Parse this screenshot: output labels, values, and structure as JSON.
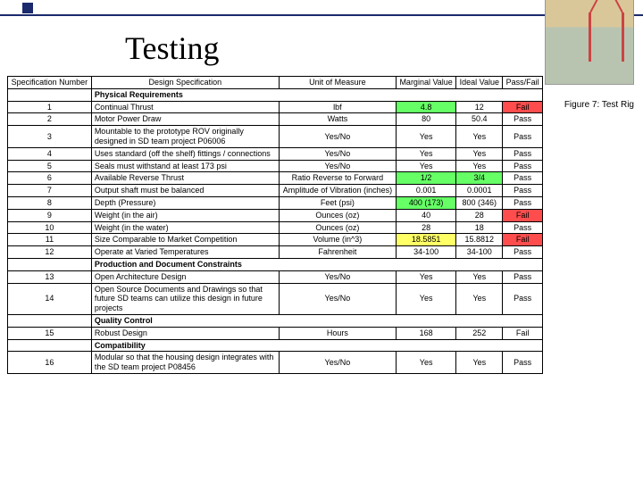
{
  "title": "Testing",
  "caption": "Figure 7: Test Rig",
  "headers": {
    "num": "Specification Number",
    "spec": "Design Specification",
    "unit": "Unit of Measure",
    "marg": "Marginal Value",
    "ideal": "Ideal Value",
    "pf": "Pass/Fail"
  },
  "sections": {
    "phys": "Physical Requirements",
    "prod": "Production and Document Constraints",
    "qual": "Quality Control",
    "compat": "Compatibility"
  },
  "rows": {
    "r1": {
      "n": "1",
      "spec": "Continual Thrust",
      "unit": "lbf",
      "marg": "4.8",
      "ideal": "12",
      "pf": "Fail",
      "marg_hl": "hl-green",
      "pf_hl": "hl-red"
    },
    "r2": {
      "n": "2",
      "spec": "Motor Power Draw",
      "unit": "Watts",
      "marg": "80",
      "ideal": "50.4",
      "pf": "Pass"
    },
    "r3": {
      "n": "3",
      "spec": "Mountable to the prototype ROV originally designed in SD team project P06006",
      "unit": "Yes/No",
      "marg": "Yes",
      "ideal": "Yes",
      "pf": "Pass"
    },
    "r4": {
      "n": "4",
      "spec": "Uses standard (off the shelf) fittings / connections",
      "unit": "Yes/No",
      "marg": "Yes",
      "ideal": "Yes",
      "pf": "Pass"
    },
    "r5": {
      "n": "5",
      "spec": "Seals must withstand at least 173 psi",
      "unit": "Yes/No",
      "marg": "Yes",
      "ideal": "Yes",
      "pf": "Pass"
    },
    "r6": {
      "n": "6",
      "spec": "Available Reverse Thrust",
      "unit": "Ratio Reverse to Forward",
      "marg": "1/2",
      "ideal": "3/4",
      "pf": "Pass",
      "marg_hl": "hl-green",
      "ideal_hl": "hl-green"
    },
    "r7": {
      "n": "7",
      "spec": "Output shaft must be balanced",
      "unit": "Amplitude of Vibration (inches)",
      "marg": "0.001",
      "ideal": "0.0001",
      "pf": "Pass"
    },
    "r8": {
      "n": "8",
      "spec": "Depth (Pressure)",
      "unit": "Feet (psi)",
      "marg": "400 (173)",
      "ideal": "800 (346)",
      "pf": "Pass",
      "marg_hl": "hl-green"
    },
    "r9": {
      "n": "9",
      "spec": "Weight (in the air)",
      "unit": "Ounces (oz)",
      "marg": "40",
      "ideal": "28",
      "pf": "Fail",
      "pf_hl": "hl-red"
    },
    "r10": {
      "n": "10",
      "spec": "Weight (in the water)",
      "unit": "Ounces (oz)",
      "marg": "28",
      "ideal": "18",
      "pf": "Pass"
    },
    "r11": {
      "n": "11",
      "spec": "Size Comparable to Market Competition",
      "unit": "Volume (in^3)",
      "marg": "18.5851",
      "ideal": "15.8812",
      "pf": "Fail",
      "marg_hl": "hl-yellow",
      "pf_hl": "hl-red"
    },
    "r12": {
      "n": "12",
      "spec": "Operate at Varied Temperatures",
      "unit": "Fahrenheit",
      "marg": "34-100",
      "ideal": "34-100",
      "pf": "Pass"
    },
    "r13": {
      "n": "13",
      "spec": "Open Architecture Design",
      "unit": "Yes/No",
      "marg": "Yes",
      "ideal": "Yes",
      "pf": "Pass"
    },
    "r14": {
      "n": "14",
      "spec": "Open Source Documents and Drawings so that future SD teams can utilize this design in future projects",
      "unit": "Yes/No",
      "marg": "Yes",
      "ideal": "Yes",
      "pf": "Pass"
    },
    "r15": {
      "n": "15",
      "spec": "Robust Design",
      "unit": "Hours",
      "marg": "168",
      "ideal": "252",
      "pf": "Fail"
    },
    "r16": {
      "n": "16",
      "spec": "Modular so that the housing design integrates with the SD team project P08456",
      "unit": "Yes/No",
      "marg": "Yes",
      "ideal": "Yes",
      "pf": "Pass"
    }
  }
}
